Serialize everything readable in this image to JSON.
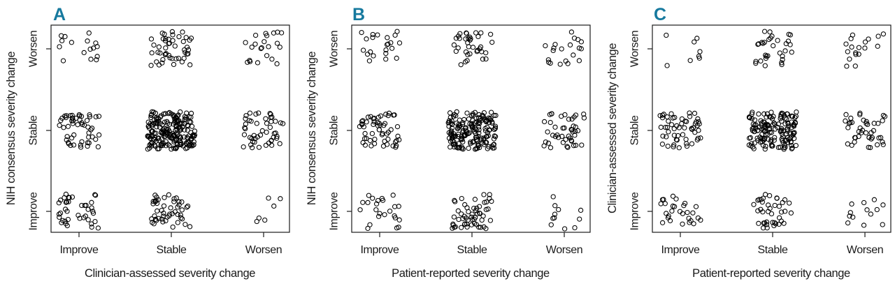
{
  "colors": {
    "panel_label_accent": "#16799e",
    "axis_text": "#1a1a1a",
    "point_stroke": "#000000",
    "background": "#ffffff"
  },
  "figure": {
    "panels": [
      {
        "label": "A",
        "x_axis": {
          "title": "Clinician-assessed severity change",
          "ticks": [
            "Improve",
            "Stable",
            "Worsen"
          ]
        },
        "y_axis": {
          "title": "NIH consensus severity change",
          "ticks_top_to_bottom": [
            "Worsen",
            "Stable",
            "Improve"
          ]
        }
      },
      {
        "label": "B",
        "x_axis": {
          "title": "Patient-reported severity change",
          "ticks": [
            "Improve",
            "Stable",
            "Worsen"
          ]
        },
        "y_axis": {
          "title": "NIH consensus severity change",
          "ticks_top_to_bottom": [
            "Worsen",
            "Stable",
            "Improve"
          ]
        }
      },
      {
        "label": "C",
        "x_axis": {
          "title": "Patient-reported severity change",
          "ticks": [
            "Improve",
            "Stable",
            "Worsen"
          ]
        },
        "y_axis": {
          "title": "Clinician-assessed severity change",
          "ticks_top_to_bottom": [
            "Worsen",
            "Stable",
            "Improve"
          ]
        }
      }
    ]
  },
  "chart_data": [
    {
      "type": "scatter",
      "panel": "A",
      "xlabel": "Clinician-assessed severity change",
      "ylabel": "NIH consensus severity change",
      "x_categories": [
        "Improve",
        "Stable",
        "Worsen"
      ],
      "y_categories_top_to_bottom": [
        "Worsen",
        "Stable",
        "Improve"
      ],
      "marker": "open-circle",
      "jitter": "uniform",
      "counts_by_row": {
        "Worsen": [
          16,
          48,
          22
        ],
        "Stable": [
          52,
          210,
          48
        ],
        "Improve": [
          40,
          50,
          6
        ]
      }
    },
    {
      "type": "scatter",
      "panel": "B",
      "xlabel": "Patient-reported severity change",
      "ylabel": "NIH consensus severity change",
      "x_categories": [
        "Improve",
        "Stable",
        "Worsen"
      ],
      "y_categories_top_to_bottom": [
        "Worsen",
        "Stable",
        "Improve"
      ],
      "marker": "open-circle",
      "jitter": "uniform",
      "counts_by_row": {
        "Worsen": [
          22,
          36,
          20
        ],
        "Stable": [
          55,
          175,
          45
        ],
        "Improve": [
          24,
          55,
          11
        ]
      }
    },
    {
      "type": "scatter",
      "panel": "C",
      "xlabel": "Patient-reported severity change",
      "ylabel": "Clinician-assessed severity change",
      "x_categories": [
        "Improve",
        "Stable",
        "Worsen"
      ],
      "y_categories_top_to_bottom": [
        "Worsen",
        "Stable",
        "Improve"
      ],
      "marker": "open-circle",
      "jitter": "uniform",
      "counts_by_row": {
        "Worsen": [
          8,
          32,
          18
        ],
        "Stable": [
          55,
          155,
          42
        ],
        "Improve": [
          28,
          40,
          13
        ]
      }
    }
  ]
}
